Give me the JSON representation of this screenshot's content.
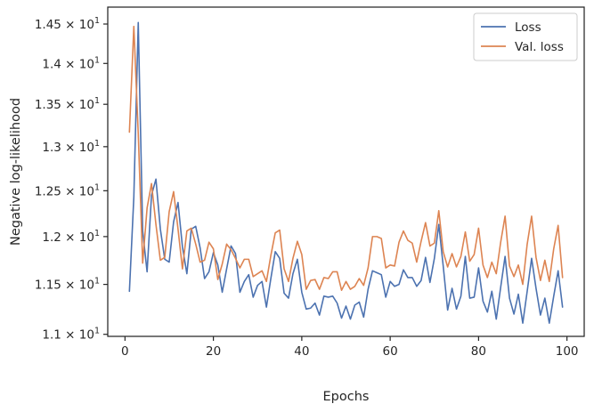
{
  "chart_data": {
    "type": "line",
    "xlabel": "Epochs",
    "ylabel": "Negative log-likelihood",
    "y_scale": "log",
    "xlim": [
      -3.9,
      103.9
    ],
    "ylim": [
      10.98,
      14.72
    ],
    "x_ticks": [
      0,
      20,
      40,
      60,
      80,
      100
    ],
    "x_tick_labels": [
      "0",
      "20",
      "40",
      "60",
      "80",
      "100"
    ],
    "y_ticks": [
      11.0,
      11.5,
      12.0,
      12.5,
      13.0,
      13.5,
      14.0,
      14.5
    ],
    "y_tick_labels": [
      {
        "base": "1.1 × 10",
        "exp": "1"
      },
      {
        "base": "1.15 × 10",
        "exp": "1"
      },
      {
        "base": "1.2 × 10",
        "exp": "1"
      },
      {
        "base": "1.25 × 10",
        "exp": "1"
      },
      {
        "base": "1.3 × 10",
        "exp": "1"
      },
      {
        "base": "1.35 × 10",
        "exp": "1"
      },
      {
        "base": "1.4 × 10",
        "exp": "1"
      },
      {
        "base": "1.45 × 10",
        "exp": "1"
      }
    ],
    "grid": false,
    "legend_position": "top-right",
    "x_start": 1,
    "series": [
      {
        "name": "Loss",
        "color": "#4c72b0",
        "values": [
          11.43,
          12.43,
          14.52,
          12.06,
          11.63,
          12.45,
          12.63,
          12.08,
          11.76,
          11.73,
          12.16,
          12.37,
          11.89,
          11.61,
          12.08,
          12.11,
          11.88,
          11.56,
          11.63,
          11.83,
          11.7,
          11.42,
          11.66,
          11.9,
          11.82,
          11.42,
          11.53,
          11.6,
          11.37,
          11.49,
          11.53,
          11.27,
          11.56,
          11.84,
          11.77,
          11.41,
          11.36,
          11.61,
          11.76,
          11.42,
          11.25,
          11.26,
          11.31,
          11.19,
          11.38,
          11.37,
          11.38,
          11.31,
          11.16,
          11.28,
          11.15,
          11.29,
          11.32,
          11.17,
          11.45,
          11.64,
          11.62,
          11.6,
          11.37,
          11.53,
          11.48,
          11.5,
          11.65,
          11.57,
          11.57,
          11.48,
          11.54,
          11.78,
          11.52,
          11.77,
          12.13,
          11.69,
          11.24,
          11.46,
          11.25,
          11.38,
          11.79,
          11.36,
          11.37,
          11.67,
          11.33,
          11.22,
          11.43,
          11.15,
          11.47,
          11.79,
          11.36,
          11.2,
          11.4,
          11.11,
          11.43,
          11.77,
          11.46,
          11.19,
          11.36,
          11.11,
          11.38,
          11.64,
          11.27
        ]
      },
      {
        "name": "Val. loss",
        "color": "#dd8452",
        "values": [
          13.17,
          14.47,
          13.15,
          11.72,
          12.31,
          12.58,
          12.13,
          11.75,
          11.78,
          12.27,
          12.49,
          12.08,
          11.66,
          12.06,
          12.09,
          11.92,
          11.73,
          11.75,
          11.94,
          11.87,
          11.55,
          11.71,
          11.92,
          11.86,
          11.77,
          11.67,
          11.76,
          11.76,
          11.58,
          11.61,
          11.64,
          11.53,
          11.8,
          12.04,
          12.07,
          11.66,
          11.53,
          11.77,
          11.95,
          11.81,
          11.45,
          11.54,
          11.55,
          11.45,
          11.57,
          11.56,
          11.63,
          11.63,
          11.44,
          11.53,
          11.45,
          11.48,
          11.56,
          11.49,
          11.67,
          12.0,
          12.0,
          11.98,
          11.67,
          11.7,
          11.69,
          11.94,
          12.06,
          11.96,
          11.93,
          11.73,
          11.95,
          12.15,
          11.9,
          11.93,
          12.28,
          11.84,
          11.68,
          11.82,
          11.68,
          11.79,
          12.05,
          11.74,
          11.81,
          12.09,
          11.7,
          11.57,
          11.73,
          11.61,
          11.94,
          12.22,
          11.69,
          11.58,
          11.7,
          11.5,
          11.92,
          12.22,
          11.78,
          11.54,
          11.75,
          11.53,
          11.87,
          12.12,
          11.57
        ]
      }
    ]
  }
}
